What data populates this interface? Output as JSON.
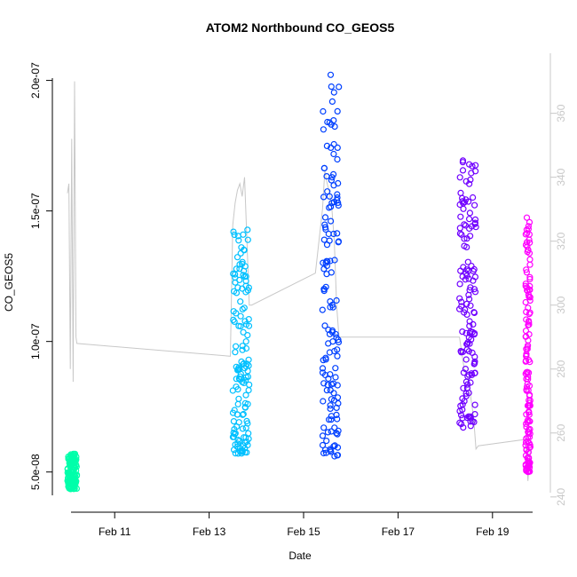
{
  "chart_data": {
    "type": "scatter",
    "title": "ATOM2 Northbound CO_GEOS5",
    "xlabel": "Date",
    "ylabel": "CO_GEOS5",
    "x_unit": "days in February",
    "xlim": [
      10.0,
      20.0
    ],
    "ylim": [
      3.8e-08,
      2.07e-07
    ],
    "y2lim": [
      238,
      376
    ],
    "x_ticks": [
      {
        "value": 11,
        "label": "Feb 11"
      },
      {
        "value": 13,
        "label": "Feb 13"
      },
      {
        "value": 15,
        "label": "Feb 15"
      },
      {
        "value": 17,
        "label": "Feb 17"
      },
      {
        "value": 19,
        "label": "Feb 19"
      }
    ],
    "y_ticks": [
      {
        "value": 5e-08,
        "label": "5.0e-08"
      },
      {
        "value": 1e-07,
        "label": "1.0e-07"
      },
      {
        "value": 1.5e-07,
        "label": "1.5e-07"
      },
      {
        "value": 2e-07,
        "label": "2.0e-07"
      }
    ],
    "y2_ticks": [
      {
        "value": 240,
        "label": "240"
      },
      {
        "value": 260,
        "label": "260"
      },
      {
        "value": 280,
        "label": "280"
      },
      {
        "value": 300,
        "label": "300"
      },
      {
        "value": 320,
        "label": "320"
      },
      {
        "value": 340,
        "label": "340"
      },
      {
        "value": 360,
        "label": "360"
      }
    ],
    "series": [
      {
        "color": "#00ffaa",
        "x_range": [
          10.0,
          10.2
        ],
        "y_min": 4.35e-08,
        "y_max": 5.7e-08
      },
      {
        "color": "#00c0ff",
        "x_range": [
          13.5,
          13.85
        ],
        "y_min": 5.7e-08,
        "y_max": 1.43e-07
      },
      {
        "color": "#0040ff",
        "x_range": [
          15.4,
          15.75
        ],
        "y_min": 5.6e-08,
        "y_max": 2.04e-07
      },
      {
        "color": "#7000ff",
        "x_range": [
          18.3,
          18.65
        ],
        "y_min": 6.7e-08,
        "y_max": 1.73e-07
      },
      {
        "color": "#ff00ff",
        "x_range": [
          19.7,
          19.8
        ],
        "y_min": 5e-08,
        "y_max": 1.48e-07
      }
    ],
    "secondary_line": {
      "color": "#c8c8c8",
      "x": [
        10.0,
        10.03,
        10.06,
        10.09,
        10.12,
        10.15,
        10.18,
        10.2,
        13.45,
        13.5,
        13.55,
        13.6,
        13.65,
        13.7,
        13.75,
        13.8,
        13.85,
        13.9,
        15.25,
        15.4,
        15.45,
        15.5,
        15.55,
        15.6,
        15.65,
        15.7,
        15.75,
        18.3,
        18.4,
        18.5,
        18.55,
        18.6,
        18.65,
        18.7,
        19.7,
        19.75,
        19.8
      ],
      "y": [
        335,
        338,
        280,
        352,
        276,
        370,
        290,
        288,
        284,
        325,
        332,
        336,
        338,
        334,
        340,
        320,
        300,
        300,
        310,
        330,
        342,
        338,
        335,
        330,
        320,
        300,
        290,
        290,
        280,
        276,
        270,
        265,
        255,
        256,
        258,
        245,
        255
      ]
    },
    "grid": false
  }
}
